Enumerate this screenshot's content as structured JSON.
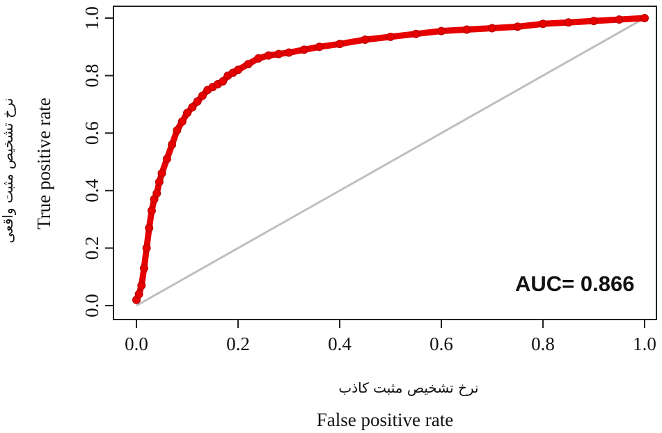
{
  "chart_data": {
    "type": "line",
    "xlabel": "False positive rate",
    "xlabel_fa": "نرخ تشخیص مثبت کاذب",
    "ylabel": "True positive rate",
    "ylabel_fa": "نرخ تشخیص مثبت واقعی",
    "xlim": [
      0,
      1
    ],
    "ylim": [
      0,
      1
    ],
    "x_ticks": [
      "0.0",
      "0.2",
      "0.4",
      "0.6",
      "0.8",
      "1.0"
    ],
    "y_ticks": [
      "0.0",
      "0.2",
      "0.4",
      "0.6",
      "0.8",
      "1.0"
    ],
    "annotation": "AUC= 0.866",
    "grid": false,
    "series": [
      {
        "color": "#e60000",
        "style": "points",
        "x": [
          0.0,
          0.005,
          0.01,
          0.015,
          0.02,
          0.025,
          0.03,
          0.035,
          0.04,
          0.045,
          0.05,
          0.06,
          0.07,
          0.08,
          0.09,
          0.1,
          0.11,
          0.12,
          0.13,
          0.14,
          0.15,
          0.16,
          0.17,
          0.18,
          0.19,
          0.2,
          0.22,
          0.24,
          0.26,
          0.28,
          0.3,
          0.33,
          0.36,
          0.4,
          0.45,
          0.5,
          0.55,
          0.6,
          0.65,
          0.7,
          0.75,
          0.8,
          0.85,
          0.9,
          0.95,
          1.0
        ],
        "y": [
          0.02,
          0.04,
          0.07,
          0.13,
          0.2,
          0.27,
          0.33,
          0.37,
          0.39,
          0.43,
          0.46,
          0.51,
          0.56,
          0.61,
          0.64,
          0.67,
          0.69,
          0.71,
          0.73,
          0.75,
          0.76,
          0.77,
          0.78,
          0.8,
          0.81,
          0.82,
          0.84,
          0.86,
          0.87,
          0.875,
          0.88,
          0.89,
          0.9,
          0.91,
          0.925,
          0.935,
          0.945,
          0.955,
          0.96,
          0.965,
          0.97,
          0.98,
          0.985,
          0.99,
          0.995,
          1.0
        ]
      },
      {
        "color": "#bfbfbf",
        "style": "line",
        "x": [
          0,
          1
        ],
        "y": [
          0,
          1
        ]
      }
    ]
  }
}
